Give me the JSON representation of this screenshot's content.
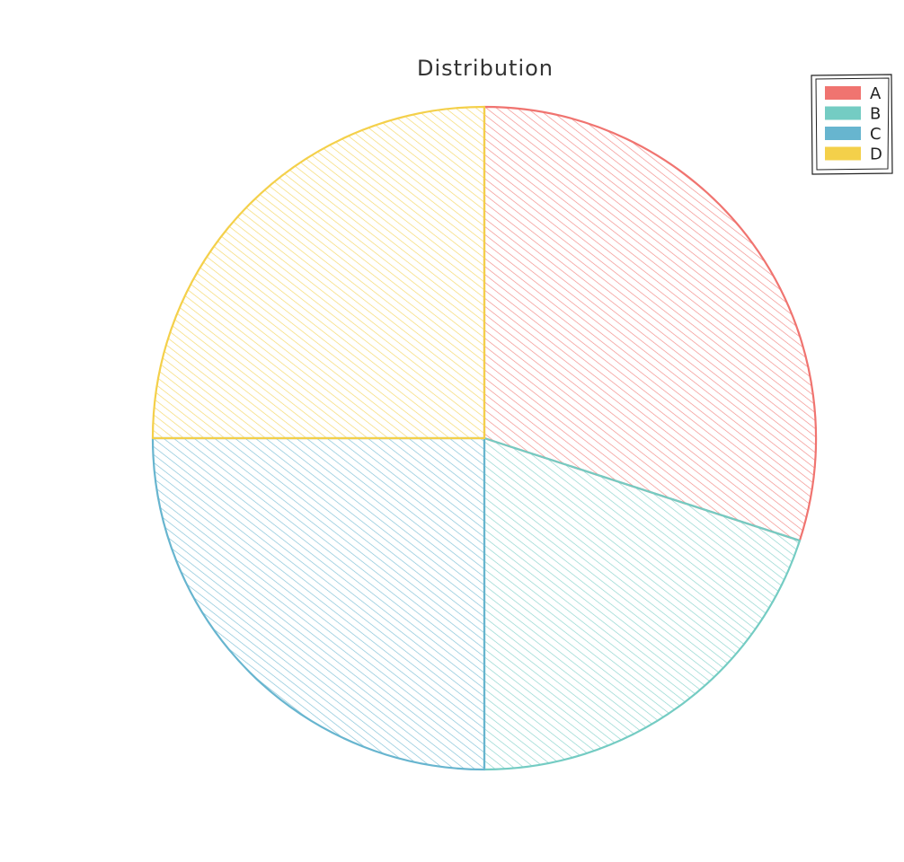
{
  "chart_data": {
    "type": "pie",
    "title": "Distribution",
    "categories": [
      "A",
      "B",
      "C",
      "D"
    ],
    "values": [
      30,
      20,
      25,
      25
    ],
    "colors": [
      "#F07470",
      "#74CCC3",
      "#67B5CF",
      "#F4D04A"
    ],
    "start_angle": "top",
    "direction": "clockwise",
    "legend": {
      "placement": "top-right",
      "entries": [
        "A",
        "B",
        "C",
        "D"
      ]
    },
    "style": "hand-drawn hachure fill"
  }
}
